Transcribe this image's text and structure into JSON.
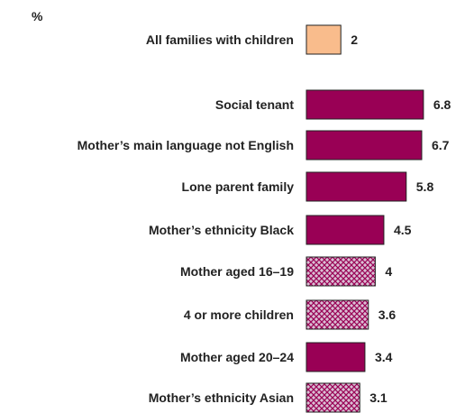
{
  "chart_data": {
    "type": "bar",
    "orientation": "horizontal",
    "unit_label": "%",
    "categories": [
      "All families with children",
      "Social tenant",
      "Mother’s main language not English",
      "Lone parent family",
      "Mother’s ethnicity Black",
      "Mother aged 16–19",
      "4 or more children",
      "Mother aged 20–24",
      "Mother’s ethnicity Asian"
    ],
    "values": [
      2,
      6.8,
      6.7,
      5.8,
      4.5,
      4,
      3.6,
      3.4,
      3.1
    ],
    "value_labels": [
      "2",
      "6.8",
      "6.7",
      "5.8",
      "4.5",
      "4",
      "3.6",
      "3.4",
      "3.1"
    ],
    "bar_styles": [
      "highlight",
      "solid",
      "solid",
      "solid",
      "solid",
      "hatched",
      "hatched",
      "solid",
      "hatched"
    ],
    "xlim": [
      0,
      7
    ],
    "grid": false,
    "legend": "none",
    "colors": {
      "highlight": "#f9bc8c",
      "solid": "#990055",
      "hatched_fill": "#d9bfd3",
      "hatched_line": "#990055",
      "outline": "#222222"
    }
  }
}
